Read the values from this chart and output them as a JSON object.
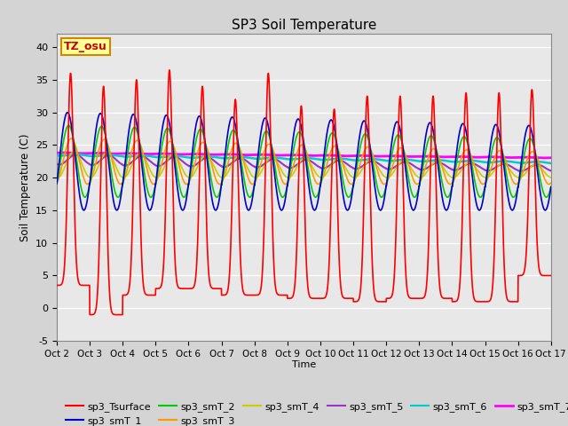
{
  "title": "SP3 Soil Temperature",
  "xlabel": "Time",
  "ylabel": "Soil Temperature (C)",
  "ylim": [
    -5,
    42
  ],
  "xlim": [
    0,
    15
  ],
  "xtick_labels": [
    "Oct 2",
    "Oct 3",
    "Oct 4",
    "Oct 5",
    "Oct 6",
    "Oct 7",
    "Oct 8",
    "Oct 9",
    "Oct 10",
    "Oct 11",
    "Oct 12",
    "Oct 13",
    "Oct 14",
    "Oct 15",
    "Oct 16",
    "Oct 17"
  ],
  "ytick_values": [
    -5,
    0,
    5,
    10,
    15,
    20,
    25,
    30,
    35,
    40
  ],
  "annotation_text": "TZ_osu",
  "annotation_color": "#cc0000",
  "annotation_bg": "#ffff99",
  "annotation_border": "#cc8800",
  "series_colors": {
    "sp3_Tsurface": "#ff0000",
    "sp3_smT_1": "#0000cc",
    "sp3_smT_2": "#00cc00",
    "sp3_smT_3": "#ff9900",
    "sp3_smT_4": "#cccc00",
    "sp3_smT_5": "#9933cc",
    "sp3_smT_6": "#00cccc",
    "sp3_smT_7": "#ff00ff"
  },
  "background_color": "#d4d4d4",
  "plot_bg": "#e8e8e8",
  "grid_color": "#ffffff",
  "num_days": 15,
  "points_per_day": 200,
  "surface_peaks": [
    36,
    34,
    35,
    36.5,
    34,
    32,
    36,
    31,
    30.5,
    32.5,
    32.5,
    32.5,
    33,
    33,
    33.5
  ],
  "surface_troughs": [
    3.5,
    -1,
    2,
    3,
    3,
    2,
    2,
    1.5,
    1.5,
    1,
    1.5,
    1.5,
    1,
    1,
    5
  ]
}
